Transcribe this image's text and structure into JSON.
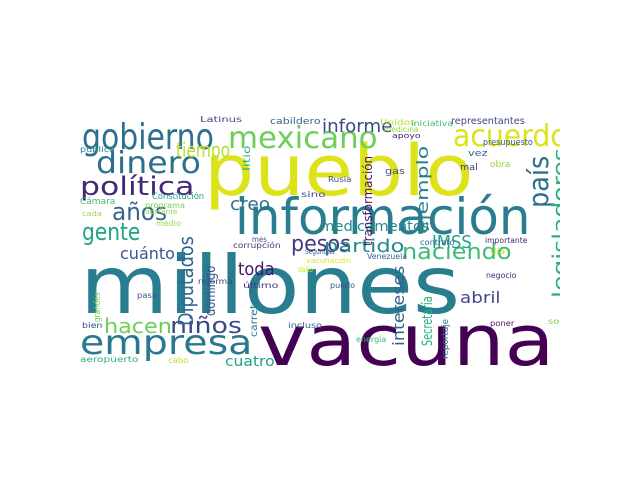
{
  "words": [
    {
      "text": "pueblo",
      "color": "#dce319"
    },
    {
      "text": "información",
      "color": "#287d8e"
    },
    {
      "text": "millones",
      "color": "#287d8e"
    },
    {
      "text": "vacuna",
      "color": "#440154"
    },
    {
      "text": "gobierno",
      "color": "#2d708e"
    },
    {
      "text": "mexicano",
      "color": "#6ece58"
    },
    {
      "text": "acuerdo",
      "color": "#dce319"
    },
    {
      "text": "dinero",
      "color": "#2d708e"
    },
    {
      "text": "política",
      "color": "#482677"
    },
    {
      "text": "tiempo",
      "color": "#b8de29"
    },
    {
      "text": "años",
      "color": "#33638d"
    },
    {
      "text": "gente",
      "color": "#20a387"
    },
    {
      "text": "empresa",
      "color": "#29798e"
    },
    {
      "text": "hacen",
      "color": "#6ece58"
    },
    {
      "text": "niños",
      "color": "#3f4788"
    },
    {
      "text": "país",
      "color": "#2d708e"
    },
    {
      "text": "legisladores",
      "color": "#29af7f"
    },
    {
      "text": "naciendo",
      "color": "#3cbb75"
    },
    {
      "text": "Diputados",
      "color": "#31688e"
    },
    {
      "text": "pesos",
      "color": "#453781"
    },
    {
      "text": "partido",
      "color": "#238a8d"
    },
    {
      "text": "cuánto",
      "color": "#39568c"
    },
    {
      "text": "creo",
      "color": "#2d708e"
    },
    {
      "text": "informe",
      "color": "#3f4788"
    },
    {
      "text": "IMSS",
      "color": "#20a387"
    },
    {
      "text": "ejemplo",
      "color": "#287d8e"
    },
    {
      "text": "Secretaría",
      "color": "#29af7f"
    },
    {
      "text": "abril",
      "color": "#404788"
    },
    {
      "text": "medicamentos",
      "color": "#238a8d"
    },
    {
      "text": "toda",
      "color": "#481567"
    },
    {
      "text": "domingo",
      "color": "#39568c"
    },
    {
      "text": "intereses",
      "color": "#33638d"
    },
    {
      "text": "cuatro",
      "color": "#20a387"
    },
    {
      "text": "Latinus",
      "color": "#404788"
    },
    {
      "text": "cabildero",
      "color": "#33638d"
    },
    {
      "text": "Unidos",
      "color": "#b8de29"
    },
    {
      "text": "iniciativa",
      "color": "#3cbb75"
    },
    {
      "text": "representantes",
      "color": "#3f4788"
    },
    {
      "text": "medicina",
      "color": "#95d840"
    },
    {
      "text": "apoyo",
      "color": "#481567"
    },
    {
      "text": "presupuesto",
      "color": "#39568c"
    },
    {
      "text": "transformación",
      "color": "#481567"
    },
    {
      "text": "gas",
      "color": "#3f4788"
    },
    {
      "text": "vez",
      "color": "#33638d"
    },
    {
      "text": "obra",
      "color": "#95d840"
    },
    {
      "text": "mal",
      "color": "#453781"
    },
    {
      "text": "pública",
      "color": "#238a8d"
    },
    {
      "text": "litio",
      "color": "#29af7f"
    },
    {
      "text": "Rusia",
      "color": "#3f4788"
    },
    {
      "text": "sino",
      "color": "#3f4788"
    },
    {
      "text": "Constitución",
      "color": "#20a387"
    },
    {
      "text": "programa",
      "color": "#73d055"
    },
    {
      "text": "Cámara",
      "color": "#3cbb75"
    },
    {
      "text": "adelante",
      "color": "#95d840"
    },
    {
      "text": "cada",
      "color": "#95d840"
    },
    {
      "text": "medio",
      "color": "#95d840"
    },
    {
      "text": "reforma",
      "color": "#404788"
    },
    {
      "text": "Seguridad",
      "color": "#39568c"
    },
    {
      "text": "mes",
      "color": "#39568c"
    },
    {
      "text": "corrupción",
      "color": "#453781"
    },
    {
      "text": "contrato",
      "color": "#33638d"
    },
    {
      "text": "importante",
      "color": "#482677"
    },
    {
      "text": "Venezuela",
      "color": "#33638d"
    },
    {
      "text": "vacunación",
      "color": "#dce319"
    },
    {
      "text": "día",
      "color": "#b8de29"
    },
    {
      "text": "daño",
      "color": "#dce319"
    },
    {
      "text": "negocio",
      "color": "#482677"
    },
    {
      "text": "último",
      "color": "#453781"
    },
    {
      "text": "puedo",
      "color": "#39568c"
    },
    {
      "text": "pasa",
      "color": "#39568c"
    },
    {
      "text": "grandes",
      "color": "#73d055"
    },
    {
      "text": "carretera",
      "color": "#29798e"
    },
    {
      "text": "poner",
      "color": "#481567"
    },
    {
      "text": "solo",
      "color": "#73d055"
    },
    {
      "text": "bien",
      "color": "#404788"
    },
    {
      "text": "incluso",
      "color": "#33638d"
    },
    {
      "text": "reportaje",
      "color": "#2d708e"
    },
    {
      "text": "energía",
      "color": "#3cbb75"
    },
    {
      "text": "abrazo",
      "color": "#481567"
    },
    {
      "text": "aeropuerto",
      "color": "#29af7f"
    },
    {
      "text": "cabo",
      "color": "#b8de29"
    }
  ]
}
